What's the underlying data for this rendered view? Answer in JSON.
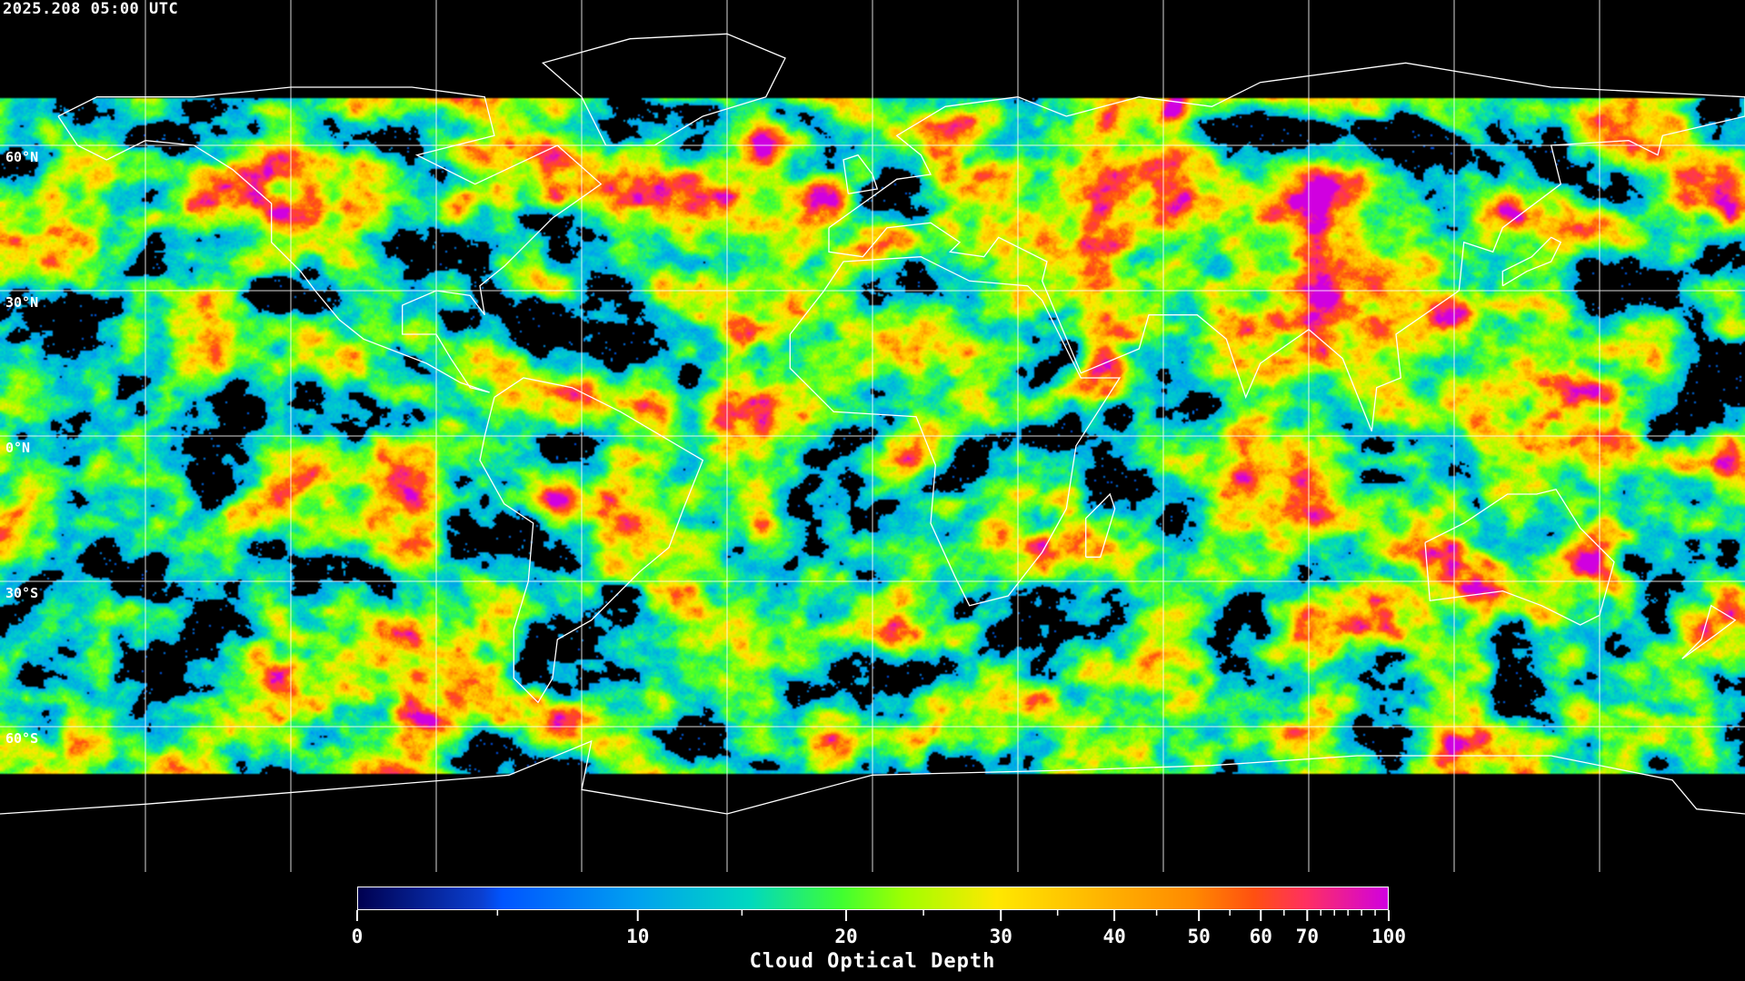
{
  "timestamp": "2025.208 05:00 UTC",
  "map": {
    "projection": "equirectangular",
    "gridlines_deg": 30,
    "gridline_color": "#ffffff",
    "coastline_color": "#ffffff",
    "lat_labels": [
      "60°N",
      "30°N",
      "0°N",
      "30°S",
      "60°S"
    ]
  },
  "colorbar": {
    "title": "Cloud Optical Depth",
    "min": 0,
    "max": 100,
    "major_ticks": [
      {
        "value": 0,
        "label": "0"
      },
      {
        "value": 10,
        "label": "10"
      },
      {
        "value": 20,
        "label": "20"
      },
      {
        "value": 30,
        "label": "30"
      },
      {
        "value": 40,
        "label": "40"
      },
      {
        "value": 50,
        "label": "50"
      },
      {
        "value": 60,
        "label": "60"
      },
      {
        "value": 70,
        "label": "70"
      },
      {
        "value": 100,
        "label": "100"
      }
    ],
    "minor_ticks": [
      5,
      15,
      25,
      35,
      45,
      55,
      65,
      75,
      80,
      85,
      90,
      95
    ],
    "colors": [
      "#000050",
      "#0055ff",
      "#00a0f0",
      "#00d8c0",
      "#40ff30",
      "#a0ff00",
      "#ffe800",
      "#ffb000",
      "#ff5010",
      "#ff3060",
      "#d000e0"
    ]
  }
}
